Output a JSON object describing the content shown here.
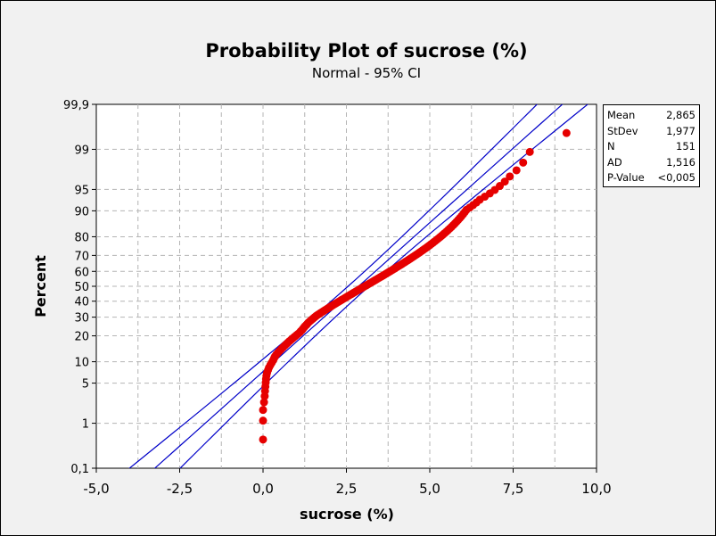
{
  "header": {
    "title": "Probability Plot of sucrose (%)",
    "subtitle": "Normal - 95% CI"
  },
  "stats": [
    {
      "label": "Mean",
      "value": "2,865"
    },
    {
      "label": "StDev",
      "value": "1,977"
    },
    {
      "label": "N",
      "value": "151"
    },
    {
      "label": "AD",
      "value": "1,516"
    },
    {
      "label": "P-Value",
      "value": "<0,005"
    }
  ],
  "colors": {
    "background": "#f1f1f1",
    "plot_area": "#ffffff",
    "grid": "#b4b4b4",
    "fit_lines": "#0000c8",
    "points": "#e60000"
  },
  "chart_data": {
    "type": "scatter",
    "title": "Probability Plot of sucrose (%)",
    "subtitle": "Normal - 95% CI",
    "xlabel": "sucrose (%)",
    "ylabel": "Percent",
    "xlim": [
      -5.0,
      10.0
    ],
    "ylim": [
      0.1,
      99.9
    ],
    "y_scale": "normal-probability",
    "grid": true,
    "x_ticks": [
      -5.0,
      -2.5,
      0.0,
      2.5,
      5.0,
      7.5,
      10.0
    ],
    "x_tick_labels": [
      "-5,0",
      "-2,5",
      "0,0",
      "2,5",
      "5,0",
      "7,5",
      "10,0"
    ],
    "y_ticks": [
      0.1,
      1,
      5,
      10,
      20,
      30,
      40,
      50,
      60,
      70,
      80,
      90,
      95,
      99,
      99.9
    ],
    "y_tick_labels": [
      "0,1",
      "1",
      "5",
      "10",
      "20",
      "30",
      "40",
      "50",
      "60",
      "70",
      "80",
      "90",
      "95",
      "99",
      "99,9"
    ],
    "fit": {
      "mean": 2.865,
      "stdev": 1.977,
      "n": 151
    },
    "confidence_level": 0.95,
    "series": [
      {
        "values_percent_rank": "median ranks (i-0.3)/(n+0.4) plotted at sorted sample values",
        "sample_sorted": [
          0.0,
          0.0,
          0.0,
          0.03,
          0.05,
          0.06,
          0.07,
          0.08,
          0.09,
          0.1,
          0.12,
          0.15,
          0.18,
          0.22,
          0.26,
          0.3,
          0.33,
          0.36,
          0.4,
          0.45,
          0.5,
          0.55,
          0.6,
          0.65,
          0.7,
          0.75,
          0.8,
          0.85,
          0.9,
          0.95,
          1.0,
          1.05,
          1.1,
          1.13,
          1.17,
          1.2,
          1.23,
          1.26,
          1.3,
          1.33,
          1.36,
          1.4,
          1.44,
          1.48,
          1.52,
          1.56,
          1.6,
          1.65,
          1.7,
          1.75,
          1.8,
          1.85,
          1.9,
          1.95,
          2.0,
          2.05,
          2.1,
          2.15,
          2.2,
          2.25,
          2.3,
          2.35,
          2.4,
          2.45,
          2.5,
          2.55,
          2.6,
          2.65,
          2.7,
          2.75,
          2.8,
          2.85,
          2.9,
          2.95,
          3.0,
          3.05,
          3.1,
          3.15,
          3.2,
          3.25,
          3.3,
          3.35,
          3.4,
          3.45,
          3.5,
          3.55,
          3.6,
          3.65,
          3.7,
          3.75,
          3.8,
          3.85,
          3.9,
          3.95,
          4.0,
          4.05,
          4.1,
          4.15,
          4.2,
          4.25,
          4.3,
          4.35,
          4.4,
          4.45,
          4.5,
          4.55,
          4.6,
          4.65,
          4.7,
          4.75,
          4.8,
          4.85,
          4.9,
          4.95,
          5.0,
          5.05,
          5.1,
          5.15,
          5.2,
          5.25,
          5.3,
          5.35,
          5.4,
          5.45,
          5.5,
          5.55,
          5.6,
          5.65,
          5.7,
          5.75,
          5.8,
          5.85,
          5.9,
          5.95,
          6.0,
          6.05,
          6.1,
          6.2,
          6.3,
          6.4,
          6.5,
          6.65,
          6.8,
          6.95,
          7.1,
          7.25,
          7.4,
          7.6,
          7.8,
          8.0,
          9.1
        ]
      }
    ]
  }
}
